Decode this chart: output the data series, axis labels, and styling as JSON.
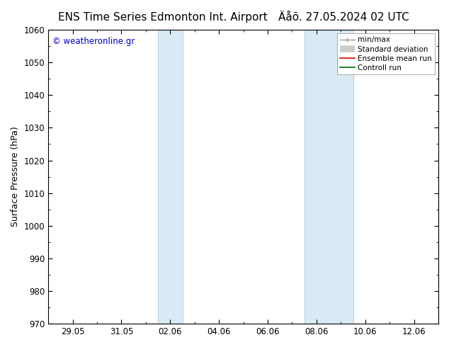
{
  "title_left": "ENS Time Series Edmonton Int. Airport",
  "title_right": "Äåõ. 27.05.2024 02 UTC",
  "ylabel": "Surface Pressure (hPa)",
  "ylim": [
    970,
    1060
  ],
  "yticks": [
    970,
    980,
    990,
    1000,
    1010,
    1020,
    1030,
    1040,
    1050,
    1060
  ],
  "xtick_labels": [
    "29.05",
    "31.05",
    "02.06",
    "04.06",
    "06.06",
    "08.06",
    "10.06",
    "12.06"
  ],
  "xtick_positions": [
    2,
    4,
    6,
    8,
    10,
    12,
    14,
    16
  ],
  "xlim": [
    1,
    17
  ],
  "watermark": "© weatheronline.gr",
  "watermark_color": "#0000cc",
  "shaded_color": "#daeaf5",
  "shaded_edge_color": "#b8d4e8",
  "background_color": "#ffffff",
  "legend_fontsize": 7.5,
  "title_fontsize": 11,
  "tick_fontsize": 8.5,
  "ylabel_fontsize": 9,
  "band1_x1": 5.5,
  "band1_x2": 6.5,
  "band2_x1": 11.5,
  "band2_x2": 13.5
}
